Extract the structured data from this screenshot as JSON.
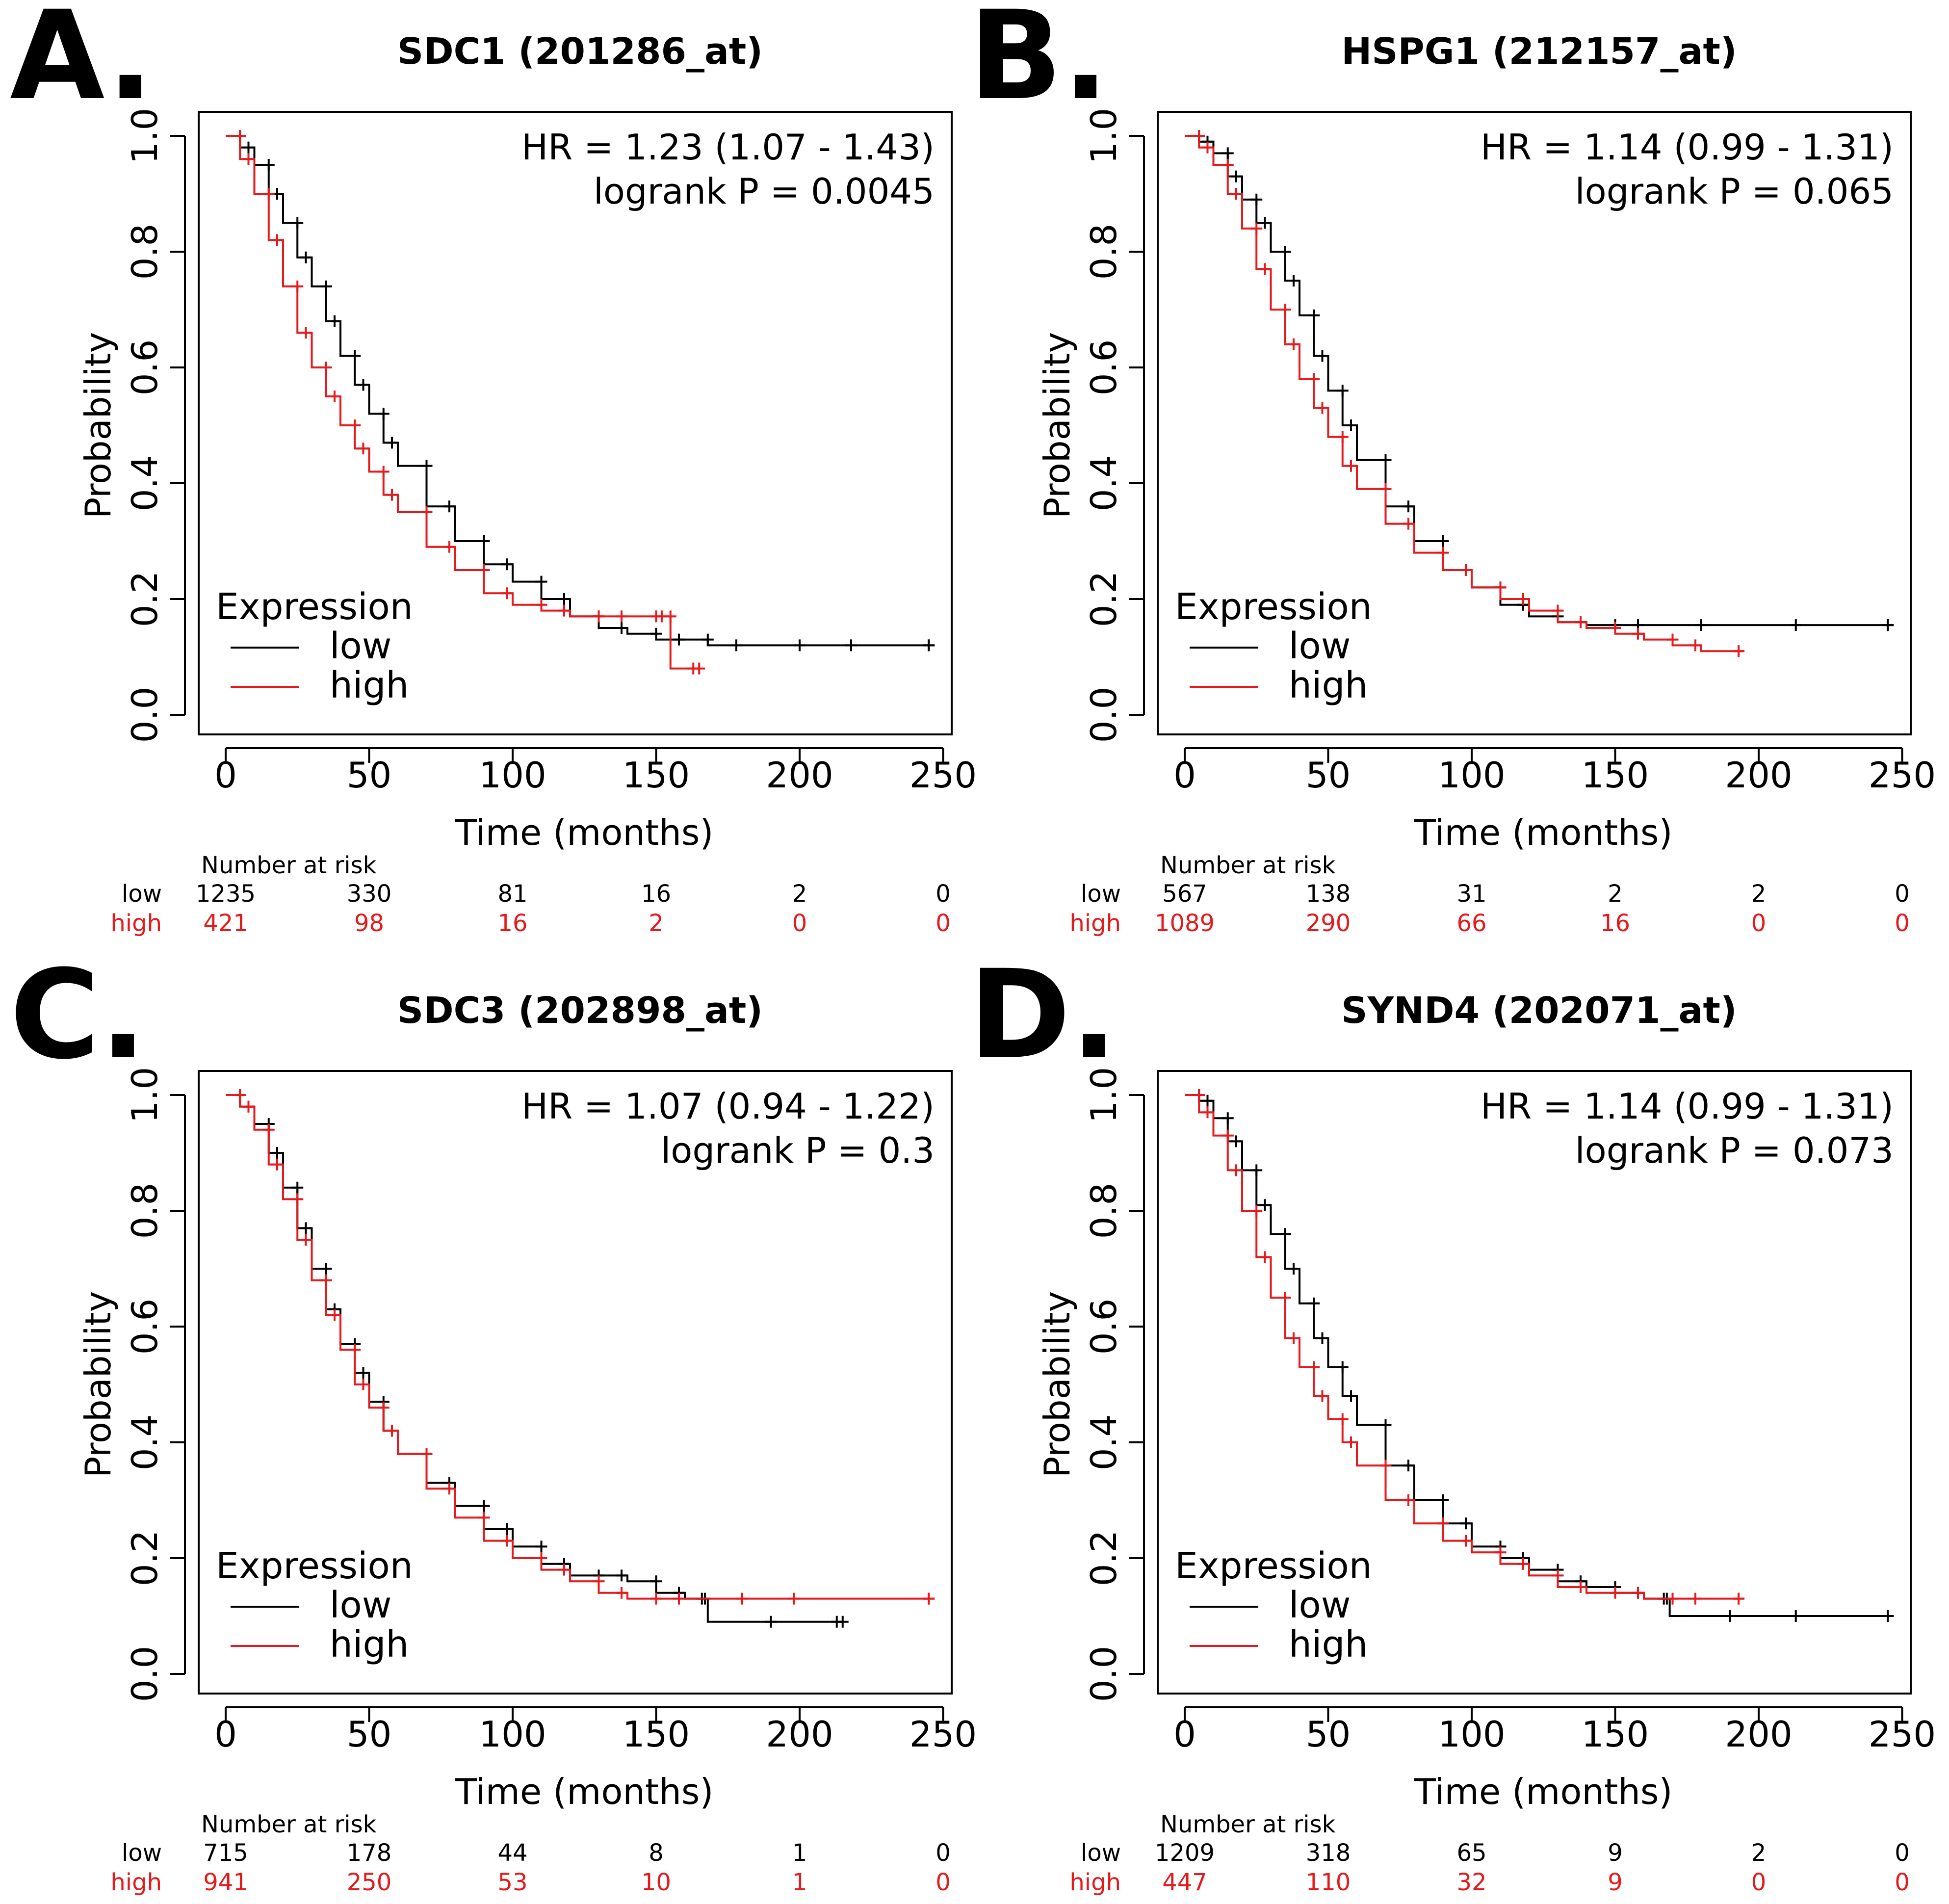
{
  "figure": {
    "colors": {
      "low": "#000000",
      "high": "#e41a1c"
    },
    "legend_title": "Expression",
    "number_at_risk_label": "Number at risk"
  },
  "chart_data": [
    {
      "panel": "A.",
      "type": "line",
      "title": "SDC1 (201286_at)",
      "xlabel": "Time (months)",
      "ylabel": "Probability",
      "xlim": [
        0,
        250
      ],
      "ylim": [
        0,
        1
      ],
      "xticks": [
        "0",
        "50",
        "100",
        "150",
        "200",
        "250"
      ],
      "yticks": [
        "0.0",
        "0.2",
        "0.4",
        "0.6",
        "0.8",
        "1.0"
      ],
      "hr_text": "HR = 1.23 (1.07 - 1.43)",
      "p_text": "logrank P = 0.0045",
      "legend": [
        "low",
        "high"
      ],
      "series": [
        {
          "name": "low",
          "x": [
            0,
            5,
            10,
            15,
            20,
            25,
            30,
            35,
            40,
            45,
            50,
            55,
            60,
            70,
            80,
            90,
            100,
            110,
            120,
            130,
            140,
            150,
            160,
            168,
            180,
            200,
            220,
            245
          ],
          "y": [
            1.0,
            0.98,
            0.95,
            0.9,
            0.85,
            0.79,
            0.74,
            0.68,
            0.62,
            0.57,
            0.52,
            0.47,
            0.43,
            0.36,
            0.3,
            0.26,
            0.23,
            0.2,
            0.17,
            0.15,
            0.14,
            0.13,
            0.13,
            0.12,
            0.12,
            0.12,
            0.12,
            0.12
          ]
        },
        {
          "name": "high",
          "x": [
            0,
            5,
            10,
            15,
            20,
            25,
            30,
            35,
            40,
            45,
            50,
            55,
            60,
            70,
            80,
            90,
            100,
            110,
            120,
            130,
            140,
            150,
            154,
            155,
            165
          ],
          "y": [
            1.0,
            0.96,
            0.9,
            0.82,
            0.74,
            0.66,
            0.6,
            0.55,
            0.5,
            0.46,
            0.42,
            0.38,
            0.35,
            0.29,
            0.25,
            0.21,
            0.19,
            0.18,
            0.17,
            0.17,
            0.17,
            0.17,
            0.17,
            0.08,
            0.08
          ]
        }
      ],
      "risk_times": [
        0,
        50,
        100,
        150,
        200,
        250
      ],
      "risk_low": [
        "1235",
        "330",
        "81",
        "16",
        "2",
        "0"
      ],
      "risk_high": [
        "421",
        "98",
        "16",
        "2",
        "0",
        "0"
      ]
    },
    {
      "panel": "B.",
      "type": "line",
      "title": "HSPG1 (212157_at)",
      "xlabel": "Time (months)",
      "ylabel": "Probability",
      "xlim": [
        0,
        250
      ],
      "ylim": [
        0,
        1
      ],
      "xticks": [
        "0",
        "50",
        "100",
        "150",
        "200",
        "250"
      ],
      "yticks": [
        "0.0",
        "0.2",
        "0.4",
        "0.6",
        "0.8",
        "1.0"
      ],
      "hr_text": "HR = 1.14 (0.99 - 1.31)",
      "p_text": "logrank P = 0.065",
      "legend": [
        "low",
        "high"
      ],
      "series": [
        {
          "name": "low",
          "x": [
            0,
            5,
            10,
            15,
            20,
            25,
            30,
            35,
            40,
            45,
            50,
            55,
            60,
            70,
            80,
            90,
            100,
            110,
            120,
            130,
            140,
            150,
            160,
            180,
            215,
            245
          ],
          "y": [
            1.0,
            0.99,
            0.97,
            0.93,
            0.89,
            0.85,
            0.8,
            0.75,
            0.69,
            0.62,
            0.56,
            0.5,
            0.44,
            0.36,
            0.3,
            0.25,
            0.22,
            0.19,
            0.17,
            0.16,
            0.155,
            0.155,
            0.155,
            0.155,
            0.155,
            0.155
          ]
        },
        {
          "name": "high",
          "x": [
            0,
            5,
            10,
            15,
            20,
            25,
            30,
            35,
            40,
            45,
            50,
            55,
            60,
            70,
            80,
            90,
            100,
            110,
            120,
            130,
            140,
            150,
            160,
            170,
            180,
            193
          ],
          "y": [
            1.0,
            0.98,
            0.95,
            0.9,
            0.84,
            0.77,
            0.7,
            0.64,
            0.58,
            0.53,
            0.48,
            0.43,
            0.39,
            0.33,
            0.28,
            0.25,
            0.22,
            0.2,
            0.18,
            0.16,
            0.15,
            0.14,
            0.13,
            0.12,
            0.11,
            0.11
          ]
        }
      ],
      "risk_times": [
        0,
        50,
        100,
        150,
        200,
        250
      ],
      "risk_low": [
        "567",
        "138",
        "31",
        "2",
        "2",
        "0"
      ],
      "risk_high": [
        "1089",
        "290",
        "66",
        "16",
        "0",
        "0"
      ]
    },
    {
      "panel": "C.",
      "type": "line",
      "title": "SDC3 (202898_at)",
      "xlabel": "Time (months)",
      "ylabel": "Probability",
      "xlim": [
        0,
        250
      ],
      "ylim": [
        0,
        1
      ],
      "xticks": [
        "0",
        "50",
        "100",
        "150",
        "200",
        "250"
      ],
      "yticks": [
        "0.0",
        "0.2",
        "0.4",
        "0.6",
        "0.8",
        "1.0"
      ],
      "hr_text": "HR = 1.07 (0.94 - 1.22)",
      "p_text": "logrank P = 0.3",
      "legend": [
        "low",
        "high"
      ],
      "series": [
        {
          "name": "low",
          "x": [
            0,
            5,
            10,
            15,
            20,
            25,
            30,
            35,
            40,
            45,
            50,
            55,
            60,
            70,
            80,
            90,
            100,
            110,
            120,
            130,
            140,
            150,
            160,
            167,
            168,
            190,
            215
          ],
          "y": [
            1.0,
            0.98,
            0.95,
            0.9,
            0.84,
            0.77,
            0.7,
            0.63,
            0.57,
            0.52,
            0.47,
            0.42,
            0.38,
            0.33,
            0.29,
            0.25,
            0.22,
            0.19,
            0.17,
            0.17,
            0.16,
            0.14,
            0.13,
            0.13,
            0.09,
            0.09,
            0.09
          ]
        },
        {
          "name": "high",
          "x": [
            0,
            5,
            10,
            15,
            20,
            25,
            30,
            35,
            40,
            45,
            50,
            55,
            60,
            70,
            80,
            90,
            100,
            110,
            120,
            130,
            140,
            150,
            160,
            180,
            200,
            245
          ],
          "y": [
            1.0,
            0.98,
            0.94,
            0.88,
            0.82,
            0.75,
            0.68,
            0.62,
            0.56,
            0.5,
            0.46,
            0.42,
            0.38,
            0.32,
            0.27,
            0.23,
            0.2,
            0.18,
            0.16,
            0.14,
            0.13,
            0.13,
            0.13,
            0.13,
            0.13,
            0.13
          ]
        }
      ],
      "risk_times": [
        0,
        50,
        100,
        150,
        200,
        250
      ],
      "risk_low": [
        "715",
        "178",
        "44",
        "8",
        "1",
        "0"
      ],
      "risk_high": [
        "941",
        "250",
        "53",
        "10",
        "1",
        "0"
      ]
    },
    {
      "panel": "D.",
      "type": "line",
      "title": "SYND4 (202071_at)",
      "xlabel": "Time (months)",
      "ylabel": "Probability",
      "xlim": [
        0,
        250
      ],
      "ylim": [
        0,
        1
      ],
      "xticks": [
        "0",
        "50",
        "100",
        "150",
        "200",
        "250"
      ],
      "yticks": [
        "0.0",
        "0.2",
        "0.4",
        "0.6",
        "0.8",
        "1.0"
      ],
      "hr_text": "HR = 1.14 (0.99 - 1.31)",
      "p_text": "logrank P = 0.073",
      "legend": [
        "low",
        "high"
      ],
      "series": [
        {
          "name": "low",
          "x": [
            0,
            5,
            10,
            15,
            20,
            25,
            30,
            35,
            40,
            45,
            50,
            55,
            60,
            70,
            80,
            90,
            100,
            110,
            120,
            130,
            140,
            150,
            160,
            168,
            169,
            190,
            215,
            245
          ],
          "y": [
            1.0,
            0.99,
            0.96,
            0.92,
            0.87,
            0.81,
            0.76,
            0.7,
            0.64,
            0.58,
            0.53,
            0.48,
            0.43,
            0.36,
            0.3,
            0.26,
            0.22,
            0.2,
            0.18,
            0.16,
            0.15,
            0.14,
            0.13,
            0.13,
            0.1,
            0.1,
            0.1,
            0.1
          ]
        },
        {
          "name": "high",
          "x": [
            0,
            5,
            10,
            15,
            20,
            25,
            30,
            35,
            40,
            45,
            50,
            55,
            60,
            70,
            80,
            90,
            100,
            110,
            120,
            130,
            140,
            150,
            160,
            170,
            180,
            193
          ],
          "y": [
            1.0,
            0.97,
            0.93,
            0.87,
            0.8,
            0.72,
            0.65,
            0.58,
            0.53,
            0.48,
            0.44,
            0.4,
            0.36,
            0.3,
            0.26,
            0.23,
            0.21,
            0.19,
            0.17,
            0.15,
            0.14,
            0.14,
            0.13,
            0.13,
            0.13,
            0.13
          ]
        }
      ],
      "risk_times": [
        0,
        50,
        100,
        150,
        200,
        250
      ],
      "risk_low": [
        "1209",
        "318",
        "65",
        "9",
        "2",
        "0"
      ],
      "risk_high": [
        "447",
        "110",
        "32",
        "9",
        "0",
        "0"
      ]
    }
  ]
}
